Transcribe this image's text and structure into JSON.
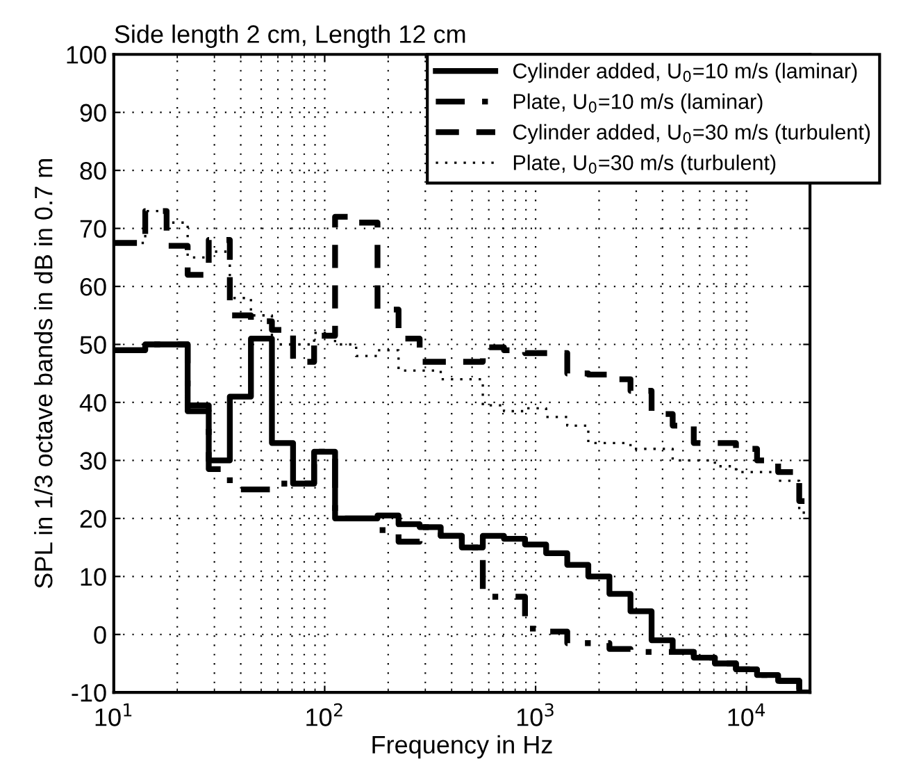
{
  "chart_data": {
    "type": "step",
    "title": "Side length 2 cm, Length 12 cm",
    "xlabel": "Frequency in Hz",
    "ylabel": "SPL in 1/3 octave bands in dB in 0.7 m",
    "x": [
      10,
      11.2,
      14.1,
      17.8,
      22.4,
      28.2,
      35.5,
      44.7,
      56.2,
      70.8,
      89.1,
      112,
      141,
      178,
      224,
      282,
      355,
      447,
      562,
      708,
      891,
      1122,
      1413,
      1778,
      2239,
      2818,
      3548,
      4467,
      5623,
      7079,
      8913,
      11220,
      14125,
      17783,
      20000
    ],
    "series": [
      {
        "name": "Cylinder added, U$_{0}$=10 m/s (laminar)",
        "color": "#000000",
        "line_style": "solid",
        "values": [
          49,
          49,
          50,
          50,
          38.5,
          30,
          41,
          51,
          33,
          26,
          31.5,
          20,
          20,
          20.5,
          19,
          18.5,
          17,
          15,
          17,
          16.5,
          15.5,
          14,
          12,
          10,
          7,
          4,
          -1,
          -3,
          -4,
          -5,
          -6,
          -7,
          -8,
          -10,
          -10
        ]
      },
      {
        "name": "Plate, U$_{0}$=10 m/s (laminar)",
        "color": "#000000",
        "line_style": "dashdot",
        "values": [
          49,
          49,
          50,
          50,
          39.5,
          28.5,
          25,
          25,
          26,
          26,
          31.5,
          20,
          20,
          18,
          16,
          18.5,
          17,
          15,
          6.5,
          6.5,
          1,
          0.5,
          -1.5,
          -1.5,
          -2.5,
          -3,
          -3,
          -3,
          -4,
          -5,
          -6,
          -7,
          -8,
          -10,
          -10
        ]
      },
      {
        "name": "Cylinder added, U$_{0}$=30 m/s (turbulent)",
        "color": "#000000",
        "line_style": "dashed",
        "values": [
          67.5,
          67.5,
          73,
          67,
          62,
          68,
          55,
          54,
          52.5,
          47,
          51.5,
          72,
          71,
          56,
          51,
          47,
          47,
          47,
          49.5,
          49,
          48.5,
          48.5,
          45,
          44.8,
          44,
          42,
          38,
          36,
          33,
          33,
          32,
          30,
          28,
          23,
          23
        ]
      },
      {
        "name": "Plate, U$_{0}$=30 m/s (turbulent)",
        "color": "#000000",
        "line_style": "dotted",
        "values": [
          67.5,
          67.5,
          73,
          71,
          65,
          66,
          58,
          55,
          50,
          50,
          52,
          50,
          48,
          49,
          45.5,
          45.5,
          44,
          44,
          39.5,
          38.5,
          39,
          37.5,
          36,
          33,
          33,
          32,
          32,
          30,
          30,
          29,
          28,
          28,
          26.5,
          21,
          21
        ]
      }
    ],
    "log": "x",
    "xlim": [
      10,
      20000
    ],
    "xticks": [
      {
        "value": 10,
        "label": "10$^{1}$"
      },
      {
        "value": 100,
        "label": "10$^{2}$"
      },
      {
        "value": 1000,
        "label": "10$^{3}$"
      },
      {
        "value": 10000,
        "label": "10$^{4}$"
      }
    ],
    "ylim": [
      -10,
      100
    ],
    "yticks": [
      -10,
      0,
      10,
      20,
      30,
      40,
      50,
      60,
      70,
      80,
      90,
      100
    ],
    "grid": true,
    "legend": "top right"
  }
}
